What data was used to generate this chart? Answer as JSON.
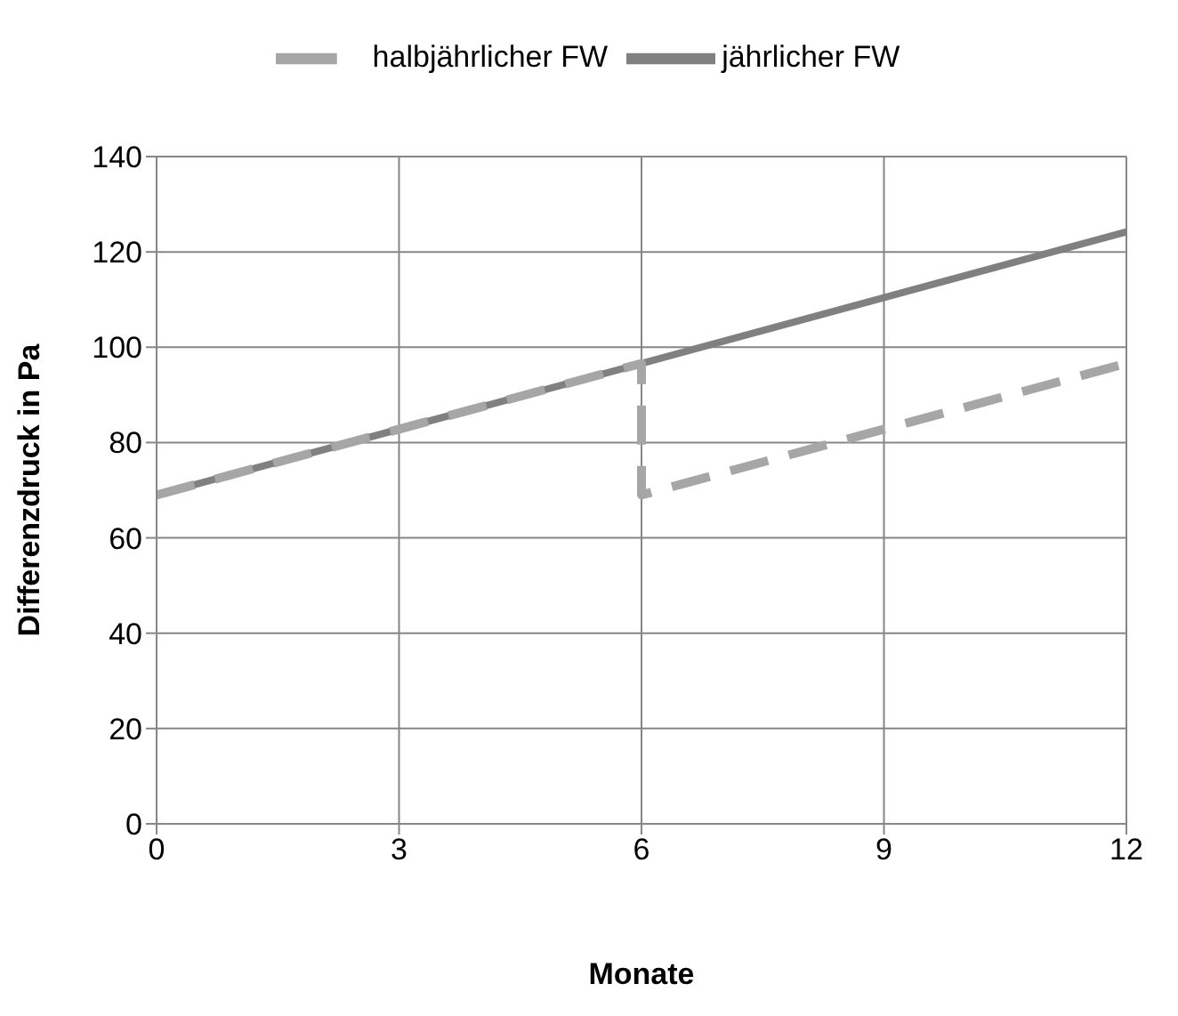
{
  "chart_data": {
    "type": "line",
    "xlabel": "Monate",
    "ylabel": "Differenzdruck in Pa",
    "xlim": [
      0,
      12
    ],
    "xticks": [
      0,
      3,
      6,
      9,
      12
    ],
    "ylim": [
      0,
      140
    ],
    "yticks": [
      0,
      20,
      40,
      60,
      80,
      100,
      120,
      140
    ],
    "grid": true,
    "legend": "top",
    "marker": "none",
    "series": [
      {
        "name": "jährlicher FW",
        "color": "#808080",
        "x": [
          0,
          12
        ],
        "values": [
          69,
          124.2
        ],
        "line_style": "solid"
      },
      {
        "name": "halbjährlicher FW",
        "color": "#a6a6a6",
        "x": [
          0,
          6,
          6,
          12
        ],
        "values": [
          69,
          96.6,
          69,
          96.6
        ],
        "line_style": "dashed"
      }
    ]
  }
}
